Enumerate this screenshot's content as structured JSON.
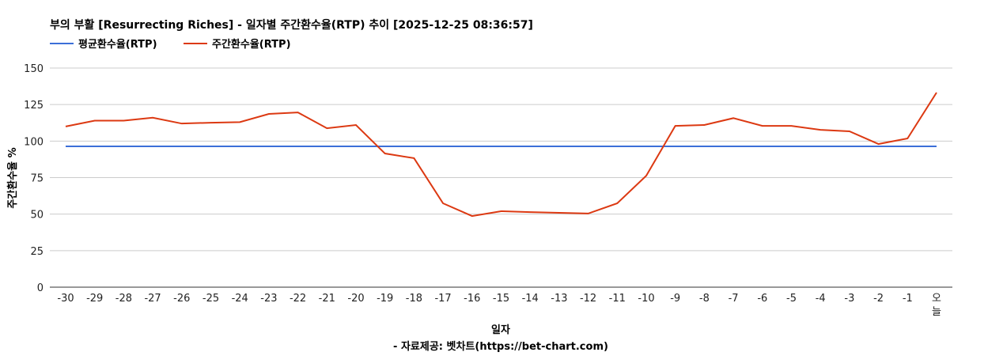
{
  "chart_data": {
    "type": "line",
    "title": "부의 부활 [Resurrecting Riches] - 일자별 주간환수율(RTP) 추이 [2025-12-25 08:36:57]",
    "xlabel": "일자",
    "ylabel": "주간환수율 %",
    "source": "- 자료제공: 벳차트(https://bet-chart.com)",
    "ylim": [
      0,
      150
    ],
    "yticks": [
      0,
      25,
      50,
      75,
      100,
      125,
      150
    ],
    "grid": true,
    "legend_position": "top-left",
    "categories": [
      "-30",
      "-29",
      "-28",
      "-27",
      "-26",
      "-25",
      "-24",
      "-23",
      "-22",
      "-21",
      "-20",
      "-19",
      "-18",
      "-17",
      "-16",
      "-15",
      "-14",
      "-13",
      "-12",
      "-11",
      "-10",
      "-9",
      "-8",
      "-7",
      "-6",
      "-5",
      "-4",
      "-3",
      "-2",
      "-1",
      "오늘"
    ],
    "series": [
      {
        "name": "평균환수율(RTP)",
        "color": "#3c6fd8",
        "values": [
          96.4,
          96.4,
          96.4,
          96.4,
          96.4,
          96.4,
          96.4,
          96.4,
          96.4,
          96.4,
          96.4,
          96.4,
          96.4,
          96.4,
          96.4,
          96.4,
          96.4,
          96.4,
          96.4,
          96.4,
          96.4,
          96.4,
          96.4,
          96.4,
          96.4,
          96.4,
          96.4,
          96.4,
          96.4,
          96.4,
          96.4
        ]
      },
      {
        "name": "주간환수율(RTP)",
        "color": "#dc3912",
        "values": [
          110,
          114,
          114,
          116,
          112,
          112.6,
          113,
          118.6,
          119.6,
          108.8,
          111,
          91.5,
          88.3,
          57.4,
          48.7,
          52,
          51.4,
          50.9,
          50.4,
          57.4,
          76.3,
          110.4,
          111,
          115.7,
          110.4,
          110.4,
          107.7,
          106.7,
          98,
          101.8,
          133.2
        ]
      }
    ]
  }
}
